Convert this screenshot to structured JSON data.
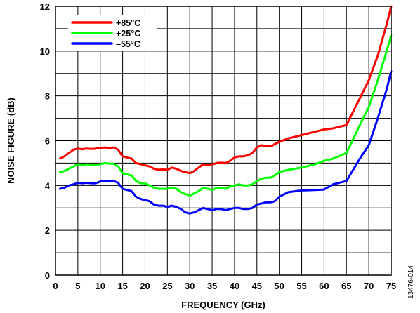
{
  "chart_data": {
    "type": "line",
    "title": "",
    "xlabel": "FREQUENCY (GHz)",
    "ylabel": "NOISE FIGURE (dB)",
    "xlim": [
      0,
      75
    ],
    "ylim": [
      0,
      12
    ],
    "xticks": [
      0,
      5,
      10,
      15,
      20,
      25,
      30,
      35,
      40,
      45,
      50,
      55,
      60,
      65,
      70,
      75
    ],
    "yticks": [
      0,
      2,
      4,
      6,
      8,
      10,
      12
    ],
    "grid": true,
    "legend_position": "top-left",
    "figure_id": "13476-014",
    "series": [
      {
        "name": "+85°C",
        "color": "#ff0000",
        "x": [
          1,
          2,
          3,
          4,
          5,
          6,
          7,
          8,
          9,
          10,
          11,
          12,
          13,
          14,
          15,
          16,
          17,
          18,
          19,
          20,
          21,
          22,
          23,
          24,
          25,
          26,
          27,
          28,
          29,
          30,
          31,
          32,
          33,
          34,
          35,
          36,
          37,
          38,
          39,
          40,
          41,
          42,
          43,
          44,
          45,
          46,
          47,
          48,
          49,
          50,
          52,
          55,
          58,
          60,
          62,
          65,
          68,
          70,
          72,
          74,
          75
        ],
        "y": [
          5.2,
          5.3,
          5.45,
          5.6,
          5.65,
          5.62,
          5.65,
          5.63,
          5.65,
          5.68,
          5.7,
          5.68,
          5.7,
          5.6,
          5.3,
          5.25,
          5.2,
          5.0,
          4.95,
          4.9,
          4.85,
          4.75,
          4.7,
          4.72,
          4.7,
          4.8,
          4.75,
          4.65,
          4.6,
          4.55,
          4.65,
          4.8,
          4.95,
          4.92,
          4.95,
          5.0,
          5.02,
          5.0,
          5.1,
          5.25,
          5.3,
          5.3,
          5.35,
          5.45,
          5.7,
          5.8,
          5.75,
          5.75,
          5.85,
          5.95,
          6.1,
          6.25,
          6.4,
          6.5,
          6.55,
          6.7,
          7.9,
          8.7,
          9.8,
          11.2,
          12.0
        ]
      },
      {
        "name": "+25°C",
        "color": "#00ff00",
        "x": [
          1,
          2,
          3,
          4,
          5,
          6,
          7,
          8,
          9,
          10,
          11,
          12,
          13,
          14,
          15,
          16,
          17,
          18,
          19,
          20,
          21,
          22,
          23,
          24,
          25,
          26,
          27,
          28,
          29,
          30,
          31,
          32,
          33,
          34,
          35,
          36,
          37,
          38,
          39,
          40,
          41,
          42,
          43,
          44,
          45,
          46,
          47,
          48,
          49,
          50,
          52,
          55,
          58,
          60,
          62,
          65,
          68,
          70,
          72,
          74,
          75
        ],
        "y": [
          4.6,
          4.65,
          4.75,
          4.85,
          4.95,
          4.93,
          4.95,
          4.93,
          4.92,
          4.95,
          5.0,
          4.98,
          4.97,
          4.85,
          4.55,
          4.5,
          4.45,
          4.2,
          4.1,
          4.1,
          4.0,
          3.9,
          3.85,
          3.85,
          3.85,
          3.9,
          3.85,
          3.7,
          3.62,
          3.55,
          3.65,
          3.75,
          3.9,
          3.85,
          3.8,
          3.9,
          3.9,
          3.85,
          3.95,
          4.0,
          4.05,
          4.0,
          4.0,
          4.05,
          4.2,
          4.3,
          4.35,
          4.35,
          4.45,
          4.6,
          4.7,
          4.8,
          4.95,
          5.1,
          5.2,
          5.45,
          6.7,
          7.5,
          8.7,
          10.0,
          10.7
        ]
      },
      {
        "name": "–55°C",
        "color": "#0000ff",
        "x": [
          1,
          2,
          3,
          4,
          5,
          6,
          7,
          8,
          9,
          10,
          11,
          12,
          13,
          14,
          15,
          16,
          17,
          18,
          19,
          20,
          21,
          22,
          23,
          24,
          25,
          26,
          27,
          28,
          29,
          30,
          31,
          32,
          33,
          34,
          35,
          36,
          37,
          38,
          39,
          40,
          41,
          42,
          43,
          44,
          45,
          46,
          47,
          48,
          49,
          50,
          52,
          55,
          58,
          60,
          62,
          65,
          68,
          70,
          72,
          74,
          75
        ],
        "y": [
          3.85,
          3.9,
          4.0,
          4.05,
          4.12,
          4.1,
          4.12,
          4.1,
          4.1,
          4.18,
          4.2,
          4.18,
          4.2,
          4.12,
          3.85,
          3.8,
          3.75,
          3.5,
          3.4,
          3.35,
          3.3,
          3.15,
          3.1,
          3.1,
          3.05,
          3.1,
          3.05,
          2.95,
          2.8,
          2.75,
          2.8,
          2.9,
          3.0,
          2.95,
          2.9,
          2.95,
          2.95,
          2.9,
          2.95,
          3.0,
          3.0,
          2.95,
          2.95,
          3.0,
          3.15,
          3.2,
          3.25,
          3.25,
          3.3,
          3.5,
          3.7,
          3.78,
          3.8,
          3.82,
          4.05,
          4.2,
          5.2,
          5.8,
          7.0,
          8.3,
          9.1
        ]
      }
    ]
  }
}
